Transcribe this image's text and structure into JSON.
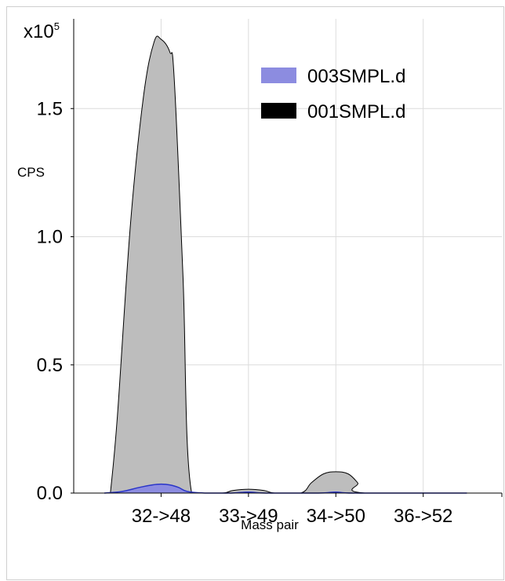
{
  "chart_data": {
    "type": "area",
    "categories": [
      "32->48",
      "33->49",
      "34->50",
      "36->52"
    ],
    "x_range": [
      -1,
      3.9
    ],
    "ylim": [
      0,
      1.85
    ],
    "y_ticks": [
      0.0,
      0.5,
      1.0,
      1.5
    ],
    "y_tick_labels": [
      "0.0",
      "0.5",
      "1.0",
      "1.5"
    ],
    "y_multiplier_base": "x10",
    "y_multiplier_exp": "5",
    "ylabel": "CPS",
    "xlabel": "Mass pair",
    "grid": true,
    "legend_position": "top-right",
    "series": [
      {
        "name": "001SMPL.d",
        "color": "#000000",
        "fill": "#bdbdbd",
        "points": [
          [
            -0.58,
            0.0
          ],
          [
            -0.5,
            0.3
          ],
          [
            -0.35,
            1.05
          ],
          [
            -0.2,
            1.55
          ],
          [
            -0.08,
            1.76
          ],
          [
            0.0,
            1.77
          ],
          [
            0.1,
            1.72
          ],
          [
            0.15,
            1.62
          ],
          [
            0.25,
            0.85
          ],
          [
            0.35,
            0.0
          ],
          [
            0.7,
            0.0
          ],
          [
            0.82,
            0.01
          ],
          [
            1.0,
            0.015
          ],
          [
            1.18,
            0.01
          ],
          [
            1.3,
            0.0
          ],
          [
            1.6,
            0.0
          ],
          [
            1.72,
            0.04
          ],
          [
            1.86,
            0.075
          ],
          [
            2.0,
            0.083
          ],
          [
            2.14,
            0.075
          ],
          [
            2.25,
            0.04
          ],
          [
            2.33,
            0.0
          ],
          [
            3.9,
            0.0
          ]
        ]
      },
      {
        "name": "003SMPL.d",
        "color": "#2a35c8",
        "fill": "#8c8ce0",
        "points": [
          [
            -0.65,
            0.0
          ],
          [
            -0.45,
            0.006
          ],
          [
            -0.25,
            0.022
          ],
          [
            -0.1,
            0.032
          ],
          [
            0.0,
            0.035
          ],
          [
            0.1,
            0.032
          ],
          [
            0.2,
            0.022
          ],
          [
            0.3,
            0.006
          ],
          [
            0.5,
            0.0
          ],
          [
            0.8,
            0.0
          ],
          [
            1.0,
            0.004
          ],
          [
            1.2,
            0.0
          ],
          [
            1.8,
            0.0
          ],
          [
            2.0,
            0.004
          ],
          [
            2.2,
            0.0
          ],
          [
            3.0,
            0.0
          ],
          [
            3.5,
            0.0
          ]
        ]
      }
    ]
  }
}
